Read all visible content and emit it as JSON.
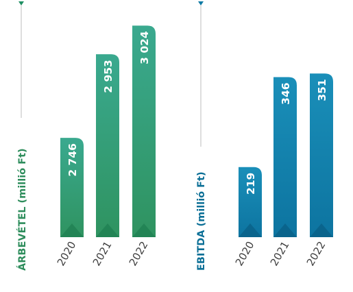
{
  "colors": {
    "green_light": "#3ba98a",
    "green_dark": "#2e8d5c",
    "blue_light": "#1a95bd",
    "blue_dark": "#0b6f96",
    "axis_line": "#c8c8c8"
  },
  "chart_data": [
    {
      "type": "bar",
      "ylabel": "ÁRBEVÉTEL (millió Ft)",
      "categories": [
        "2020",
        "2021",
        "2022"
      ],
      "values": [
        2746,
        2953,
        3024
      ],
      "value_labels": [
        "2 746",
        "2 953",
        "3 024"
      ],
      "ylim": [
        2500,
        3050
      ],
      "grid": false
    },
    {
      "type": "bar",
      "ylabel": "EBITDA (millió Ft)",
      "categories": [
        "2020",
        "2021",
        "2022"
      ],
      "values": [
        219,
        346,
        351
      ],
      "value_labels": [
        "219",
        "346",
        "351"
      ],
      "ylim": [
        120,
        360
      ],
      "grid": false
    }
  ]
}
